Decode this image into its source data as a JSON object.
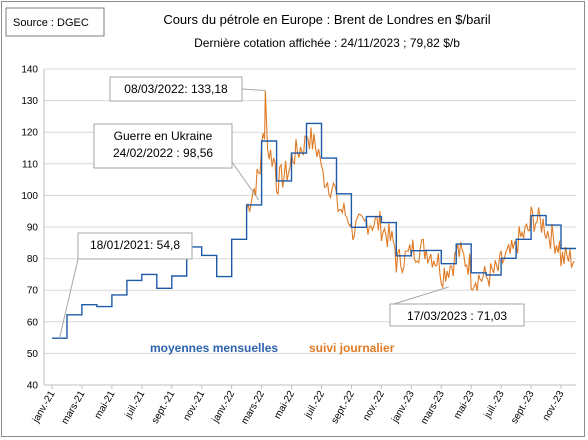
{
  "source_label": "Source : DGEC",
  "chart_data": {
    "type": "line",
    "title": "Cours du pétrole en Europe : Brent de Londres en $/baril",
    "subtitle": "Dernière cotation affichée : 24/11/2023 ; 79,82 $/b",
    "ylim": [
      40,
      140
    ],
    "y_ticks": [
      40,
      50,
      60,
      70,
      80,
      90,
      100,
      110,
      120,
      130,
      140
    ],
    "x_ticks": [
      "janv.-21",
      "mars-21",
      "mai-21",
      "juil.-21",
      "sept.-21",
      "nov.-21",
      "janv.-22",
      "mars-22",
      "mai-22",
      "juil.-22",
      "sept.-22",
      "nov.-22",
      "janv.-23",
      "mars-23",
      "mai-23",
      "juil.-23",
      "sept.-23",
      "nov.-23"
    ],
    "grid": true,
    "series": [
      {
        "name": "moyennes mensuelles",
        "color": "#1f5aa8",
        "step": true,
        "months": [
          "janv.-21",
          "févr.-21",
          "mars-21",
          "avr.-21",
          "mai-21",
          "juin-21",
          "juil.-21",
          "août-21",
          "sept.-21",
          "oct.-21",
          "nov.-21",
          "déc.-21",
          "janv.-22",
          "févr.-22",
          "mars-22",
          "avr.-22",
          "mai-22",
          "juin-22",
          "juil.-22",
          "août-22",
          "sept.-22",
          "oct.-22",
          "nov.-22",
          "déc.-22",
          "janv.-23",
          "févr.-23",
          "mars-23",
          "avr.-23",
          "mai-23",
          "juin-23",
          "juil.-23",
          "août-23",
          "sept.-23",
          "oct.-23",
          "nov.-23"
        ],
        "values": [
          54.8,
          62.2,
          65.4,
          64.8,
          68.5,
          73.1,
          75.0,
          70.6,
          74.5,
          83.7,
          81.0,
          74.3,
          86.1,
          97.0,
          117.2,
          104.6,
          113.4,
          122.8,
          111.8,
          100.5,
          89.9,
          93.3,
          91.4,
          80.9,
          82.5,
          82.6,
          78.4,
          84.6,
          75.5,
          74.8,
          80.1,
          86.1,
          93.6,
          90.6,
          83.2
        ]
      },
      {
        "name": "suivi journalier",
        "color": "#e07b25",
        "months": [
          "janv.-21",
          "févr.-21",
          "mars-21",
          "avr.-21",
          "mai-21",
          "juin-21",
          "juil.-21",
          "août-21",
          "sept.-21",
          "oct.-21",
          "nov.-21",
          "déc.-21",
          "janv.-22",
          "févr.-22",
          "mars-22",
          "avr.-22",
          "mai-22",
          "juin-22",
          "juil.-22",
          "août-22",
          "sept.-22",
          "oct.-22",
          "nov.-22",
          "déc.-22",
          "janv.-23",
          "févr.-23",
          "mars-23",
          "avr.-23",
          "mai-23",
          "juin-23",
          "juil.-23",
          "août-23",
          "sept.-23",
          "oct.-23",
          "nov.-23"
        ],
        "values": [
          null,
          null,
          null,
          null,
          null,
          null,
          null,
          null,
          null,
          null,
          null,
          null,
          null,
          95.5,
          118.0,
          104.0,
          112.0,
          120.0,
          107.0,
          97.0,
          89.0,
          92.0,
          90.0,
          79.0,
          83.0,
          83.0,
          75.0,
          83.0,
          74.0,
          74.0,
          79.0,
          85.0,
          93.0,
          89.0,
          80.0
        ]
      }
    ],
    "series_labels": {
      "monthly": "moyennes mensuelles",
      "daily": "suivi journalier"
    },
    "annotations": [
      {
        "id": "peak",
        "text": [
          "08/03/2022: 133,18"
        ],
        "date_index": 14.25,
        "value": 133.18
      },
      {
        "id": "war",
        "text": [
          "Guerre en Ukraine",
          "24/02/2022 : 98,56"
        ],
        "date_index": 13.8,
        "value": 98.56
      },
      {
        "id": "low",
        "text": [
          "18/01/2021: 54,8"
        ],
        "date_index": 0.5,
        "value": 54.8
      },
      {
        "id": "mar23",
        "text": [
          "17/03/2023 : 71,03"
        ],
        "date_index": 26.5,
        "value": 71.03
      }
    ]
  }
}
